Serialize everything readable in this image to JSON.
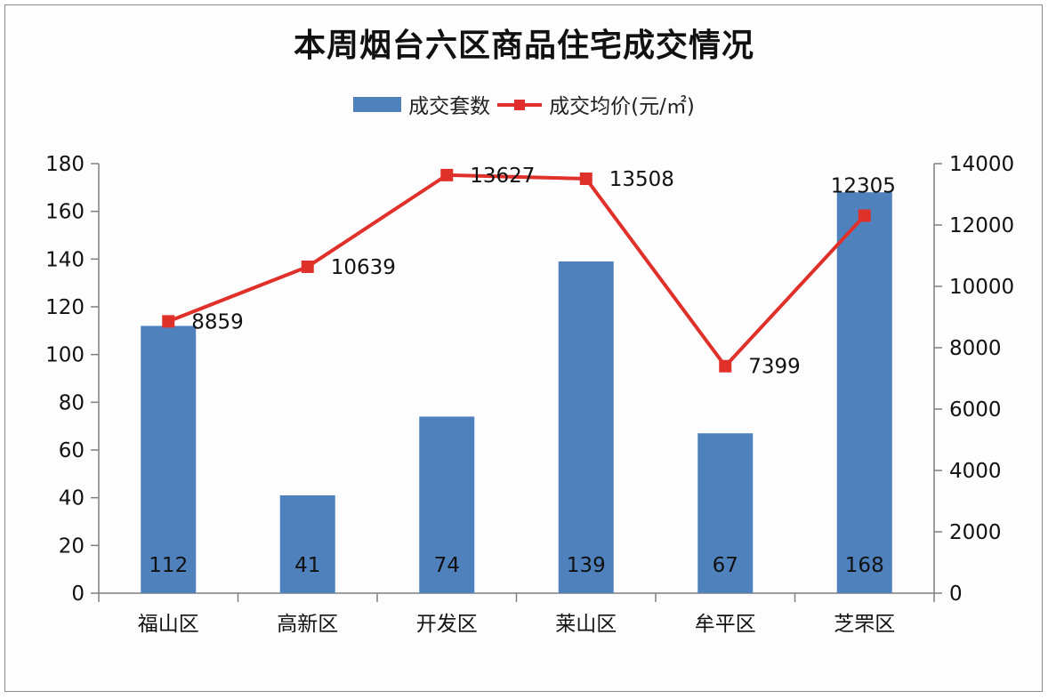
{
  "chart_data": {
    "type": "bar+line",
    "title": "本周烟台六区商品住宅成交情况",
    "categories": [
      "福山区",
      "高新区",
      "开发区",
      "莱山区",
      "牟平区",
      "芝罘区"
    ],
    "series": [
      {
        "name": "成交套数",
        "type": "bar",
        "axis": "left",
        "color": "#4f81bd",
        "values": [
          112,
          41,
          74,
          139,
          67,
          168
        ]
      },
      {
        "name": "成交均价(元/㎡)",
        "type": "line",
        "axis": "right",
        "color": "#e0302a",
        "values": [
          8859,
          10639,
          13627,
          13508,
          7399,
          12305
        ]
      }
    ],
    "left_axis": {
      "min": 0,
      "max": 180,
      "step": 20,
      "ticks": [
        0,
        20,
        40,
        60,
        80,
        100,
        120,
        140,
        160,
        180
      ]
    },
    "right_axis": {
      "min": 0,
      "max": 14000,
      "step": 2000,
      "ticks": [
        0,
        2000,
        4000,
        6000,
        8000,
        10000,
        12000,
        14000
      ]
    },
    "legend_position": "top",
    "grid": false
  },
  "title": "本周烟台六区商品住宅成交情况",
  "legend": {
    "bar": "成交套数",
    "line": "成交均价(元/㎡)"
  }
}
